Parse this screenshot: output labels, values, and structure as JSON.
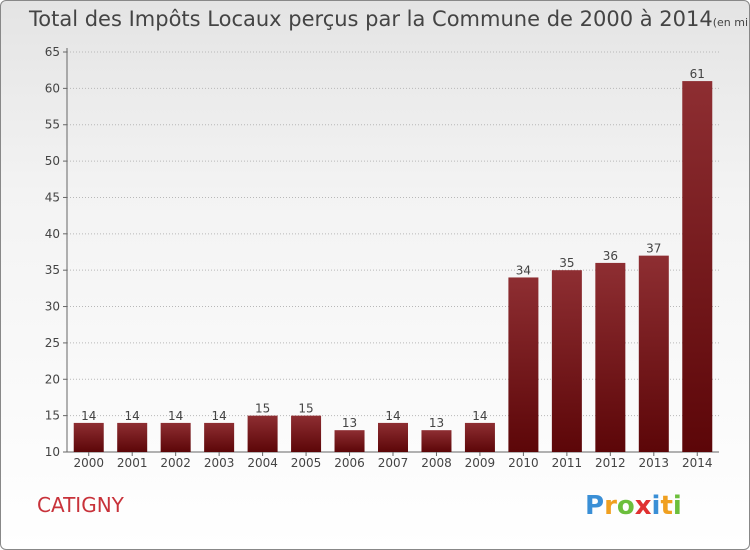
{
  "title": "Total des Impôts Locaux perçus par la Commune de 2000 à 2014",
  "unit": "(en milliers d'€)",
  "commune": "CATIGNY",
  "logo": {
    "text": "Proxiti",
    "letters": [
      "P",
      "r",
      "o",
      "x",
      "i",
      "t",
      "i"
    ],
    "colors": [
      "#3a8fd6",
      "#f0a020",
      "#6cbf3c",
      "#e03030",
      "#3a8fd6",
      "#f0a020",
      "#6cbf3c"
    ]
  },
  "colors": {
    "bar_dark": "#5c0608",
    "bar_light": "#8e2e32",
    "grid": "#b8b8b8",
    "title": "#444444",
    "commune": "#c8323a"
  },
  "chart_data": {
    "type": "bar",
    "title": "Total des Impôts Locaux perçus par la Commune de 2000 à 2014",
    "xlabel": "",
    "ylabel": "",
    "categories": [
      "2000",
      "2001",
      "2002",
      "2003",
      "2004",
      "2005",
      "2006",
      "2007",
      "2008",
      "2009",
      "2010",
      "2011",
      "2012",
      "2013",
      "2014"
    ],
    "values": [
      14,
      14,
      14,
      14,
      15,
      15,
      13,
      14,
      13,
      14,
      34,
      35,
      36,
      37,
      61
    ],
    "ylim": [
      10,
      65
    ],
    "yticks": [
      10,
      15,
      20,
      25,
      30,
      35,
      40,
      45,
      50,
      55,
      60,
      65
    ],
    "grid": true,
    "data_labels": true
  }
}
